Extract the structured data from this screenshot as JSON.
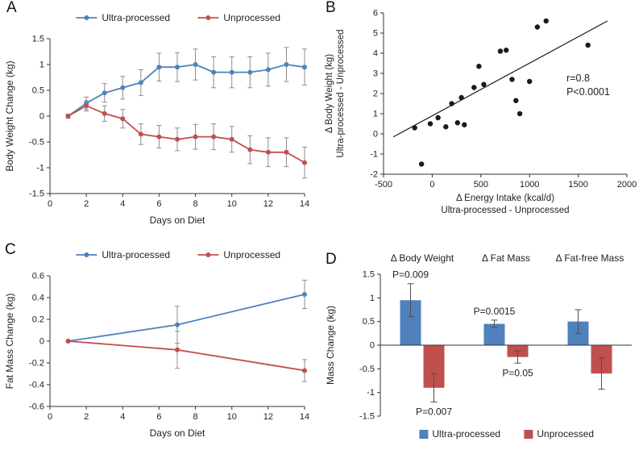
{
  "figure": {
    "panels": [
      "A",
      "B",
      "C",
      "D"
    ]
  },
  "colors": {
    "ultra_processed": "#4f81bd",
    "unprocessed": "#c0504d",
    "scatter_point": "#1a1a1a",
    "trendline": "#1a1a1a",
    "axis": "#333333",
    "error_bar": "#8c8c8c",
    "error_bar_dark": "#4d4d4d",
    "text": "#1f1f1f"
  },
  "chart_data": [
    {
      "id": "A",
      "type": "line",
      "xlabel": "Days on Diet",
      "ylabel": "Body Weight Change (kg)",
      "xlim": [
        0,
        14
      ],
      "ylim": [
        -1.5,
        1.5
      ],
      "xticks": [
        0,
        2,
        4,
        6,
        8,
        10,
        12,
        14
      ],
      "yticks": [
        1.5,
        1,
        0.5,
        0,
        -0.5,
        -1,
        -1.5
      ],
      "legend_position": "top",
      "x": [
        1,
        2,
        3,
        4,
        5,
        6,
        7,
        8,
        9,
        10,
        11,
        12,
        13,
        14
      ],
      "series": [
        {
          "name": "Ultra-processed",
          "color_key": "ultra_processed",
          "values": [
            0,
            0.25,
            0.45,
            0.55,
            0.65,
            0.95,
            0.95,
            1.0,
            0.85,
            0.85,
            0.85,
            0.9,
            1.0,
            0.95
          ],
          "errors": [
            0.04,
            0.12,
            0.18,
            0.22,
            0.25,
            0.27,
            0.28,
            0.3,
            0.3,
            0.3,
            0.3,
            0.32,
            0.33,
            0.35
          ]
        },
        {
          "name": "Unprocessed",
          "color_key": "unprocessed",
          "values": [
            0,
            0.2,
            0.05,
            -0.05,
            -0.35,
            -0.4,
            -0.45,
            -0.4,
            -0.4,
            -0.45,
            -0.65,
            -0.7,
            -0.7,
            -0.9
          ],
          "errors": [
            0.04,
            0.1,
            0.15,
            0.18,
            0.2,
            0.22,
            0.22,
            0.24,
            0.25,
            0.25,
            0.27,
            0.28,
            0.28,
            0.3
          ]
        }
      ]
    },
    {
      "id": "B",
      "type": "scatter",
      "xlabel_lines": [
        "Δ Energy Intake (kcal/d)",
        "Ultra-processed - Unprocessed"
      ],
      "ylabel_lines": [
        "Δ Body Weight (kg)",
        "Ultra-processed - Unprocessed"
      ],
      "xlim": [
        -500,
        2000
      ],
      "ylim": [
        -2,
        6
      ],
      "xticks": [
        -500,
        0,
        500,
        1000,
        1500,
        2000
      ],
      "yticks": [
        -2,
        -1,
        0,
        1,
        2,
        3,
        4,
        5,
        6
      ],
      "points": [
        [
          -180,
          0.3
        ],
        [
          -110,
          -1.5
        ],
        [
          -20,
          0.5
        ],
        [
          60,
          0.8
        ],
        [
          140,
          0.35
        ],
        [
          200,
          1.5
        ],
        [
          260,
          0.55
        ],
        [
          300,
          1.8
        ],
        [
          330,
          0.45
        ],
        [
          430,
          2.3
        ],
        [
          480,
          3.35
        ],
        [
          530,
          2.45
        ],
        [
          700,
          4.1
        ],
        [
          760,
          4.15
        ],
        [
          820,
          2.7
        ],
        [
          860,
          1.65
        ],
        [
          900,
          1.0
        ],
        [
          1000,
          2.6
        ],
        [
          1080,
          5.3
        ],
        [
          1170,
          5.6
        ],
        [
          1600,
          4.4
        ]
      ],
      "trendline": {
        "x1": -400,
        "y1": -0.15,
        "x2": 1800,
        "y2": 5.6
      },
      "annotation": {
        "x": 1380,
        "y": 2.6,
        "lines": [
          "r=0.8",
          "P<0.0001"
        ]
      }
    },
    {
      "id": "C",
      "type": "line",
      "xlabel": "Days on Diet",
      "ylabel": "Fat Mass Change (kg)",
      "xlim": [
        0,
        14
      ],
      "ylim": [
        -0.6,
        0.6
      ],
      "xticks": [
        0,
        2,
        4,
        6,
        8,
        10,
        12,
        14
      ],
      "yticks": [
        0.6,
        0.4,
        0.2,
        0,
        -0.2,
        -0.4,
        -0.6
      ],
      "legend_position": "top",
      "x": [
        1,
        7,
        14
      ],
      "series": [
        {
          "name": "Ultra-processed",
          "color_key": "ultra_processed",
          "values": [
            0,
            0.15,
            0.43
          ],
          "errors": [
            0,
            0.17,
            0.13
          ]
        },
        {
          "name": "Unprocessed",
          "color_key": "unprocessed",
          "values": [
            0,
            -0.08,
            -0.27
          ],
          "errors": [
            0,
            0.17,
            0.1
          ]
        }
      ]
    },
    {
      "id": "D",
      "type": "bar",
      "ylabel": "Mass Change (kg)",
      "ylim": [
        -1.5,
        1.5
      ],
      "yticks": [
        1.5,
        1,
        0.5,
        0,
        -0.5,
        -1,
        -1.5
      ],
      "groups": [
        "Δ Body Weight",
        "Δ Fat Mass",
        "Δ Fat-free Mass"
      ],
      "series": [
        {
          "name": "Ultra-processed",
          "color_key": "ultra_processed",
          "values": [
            0.95,
            0.45,
            0.5
          ],
          "errors": [
            0.35,
            0.08,
            0.25
          ]
        },
        {
          "name": "Unprocessed",
          "color_key": "unprocessed",
          "values": [
            -0.9,
            -0.25,
            -0.6
          ],
          "errors": [
            0.3,
            0.13,
            0.33
          ]
        }
      ],
      "p_values": [
        {
          "label": "P=0.009",
          "group": 0,
          "series": 0
        },
        {
          "label": "P=0.007",
          "group": 0,
          "series": 1
        },
        {
          "label": "P=0.0015",
          "group": 1,
          "series": 0
        },
        {
          "label": "P=0.05",
          "group": 1,
          "series": 1
        }
      ],
      "legend_position": "bottom"
    }
  ]
}
